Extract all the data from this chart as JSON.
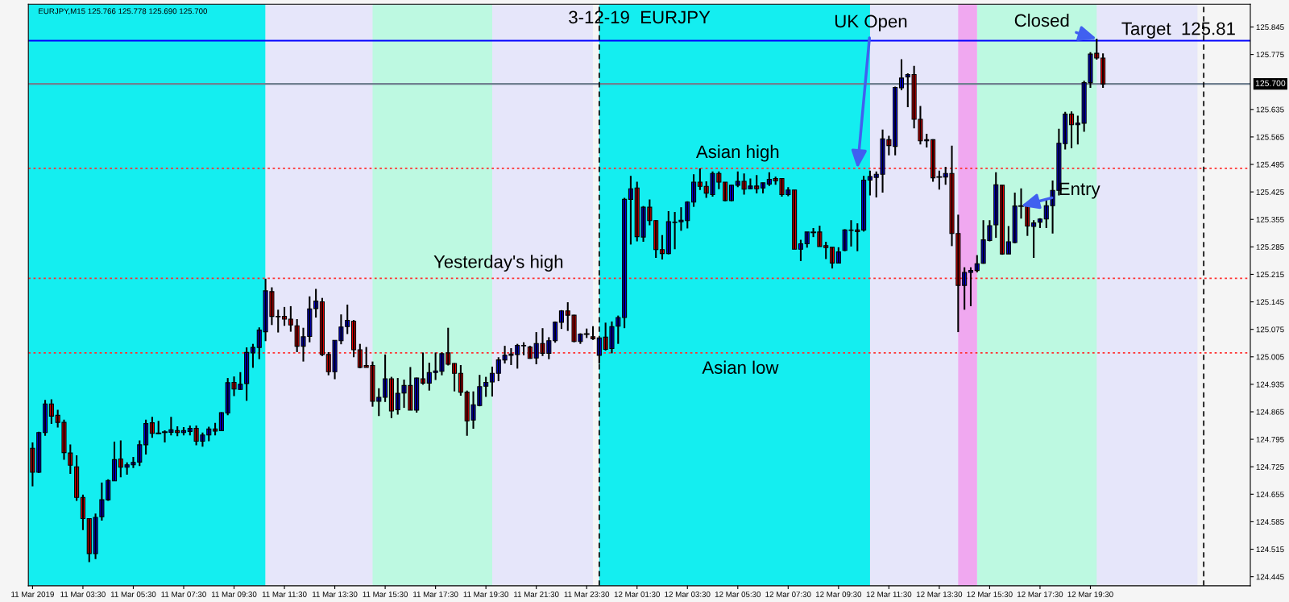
{
  "chart_data": {
    "type": "candlestick",
    "title": "3-12-19  EURJPY",
    "subtitle": "EURJPY,M15 125.766 125.778 125.690 125.700",
    "x": [
      "2019-03-11T01:30",
      "2019-03-11T01:45",
      "2019-03-11T02:00",
      "2019-03-11T02:15",
      "2019-03-11T02:30",
      "2019-03-11T02:45",
      "2019-03-11T03:00",
      "2019-03-11T03:15",
      "2019-03-11T03:30",
      "2019-03-11T03:45",
      "2019-03-11T04:00",
      "2019-03-11T04:15",
      "2019-03-11T04:30",
      "2019-03-11T04:45",
      "2019-03-11T05:00",
      "2019-03-11T05:15",
      "2019-03-11T05:30",
      "2019-03-11T05:45",
      "2019-03-11T06:00",
      "2019-03-11T06:15",
      "2019-03-11T06:30",
      "2019-03-11T06:45",
      "2019-03-11T07:00",
      "2019-03-11T07:15",
      "2019-03-11T07:30",
      "2019-03-11T07:45",
      "2019-03-11T08:00",
      "2019-03-11T08:15",
      "2019-03-11T08:30",
      "2019-03-11T08:45",
      "2019-03-11T09:00",
      "2019-03-11T09:15",
      "2019-03-11T09:30",
      "2019-03-11T09:45",
      "2019-03-11T10:00",
      "2019-03-11T10:15",
      "2019-03-11T10:30",
      "2019-03-11T10:45",
      "2019-03-11T11:00",
      "2019-03-11T11:15",
      "2019-03-11T11:30",
      "2019-03-11T11:45",
      "2019-03-11T12:00",
      "2019-03-11T12:15",
      "2019-03-11T12:30",
      "2019-03-11T12:45",
      "2019-03-11T13:00",
      "2019-03-11T13:15",
      "2019-03-11T13:30",
      "2019-03-11T13:45",
      "2019-03-11T14:00",
      "2019-03-11T14:15",
      "2019-03-11T14:30",
      "2019-03-11T14:45",
      "2019-03-11T15:00",
      "2019-03-11T15:15",
      "2019-03-11T15:30",
      "2019-03-11T15:45",
      "2019-03-11T16:00",
      "2019-03-11T16:15",
      "2019-03-11T16:30",
      "2019-03-11T16:45",
      "2019-03-11T17:00",
      "2019-03-11T17:15",
      "2019-03-11T17:30",
      "2019-03-11T17:45",
      "2019-03-11T18:00",
      "2019-03-11T18:15",
      "2019-03-11T18:30",
      "2019-03-11T18:45",
      "2019-03-11T19:00",
      "2019-03-11T19:15",
      "2019-03-11T19:30",
      "2019-03-11T19:45",
      "2019-03-11T20:00",
      "2019-03-11T20:15",
      "2019-03-11T20:30",
      "2019-03-11T20:45",
      "2019-03-11T21:00",
      "2019-03-11T21:15",
      "2019-03-11T21:30",
      "2019-03-11T21:45",
      "2019-03-11T22:00",
      "2019-03-11T22:15",
      "2019-03-11T22:30",
      "2019-03-11T22:45",
      "2019-03-11T23:00",
      "2019-03-11T23:15",
      "2019-03-11T23:30",
      "2019-03-11T23:45",
      "2019-03-12T00:00",
      "2019-03-12T00:15",
      "2019-03-12T00:30",
      "2019-03-12T00:45",
      "2019-03-12T01:00",
      "2019-03-12T01:15",
      "2019-03-12T01:30",
      "2019-03-12T01:45",
      "2019-03-12T02:00",
      "2019-03-12T02:15",
      "2019-03-12T02:30",
      "2019-03-12T02:45",
      "2019-03-12T03:00",
      "2019-03-12T03:15",
      "2019-03-12T03:30",
      "2019-03-12T03:45",
      "2019-03-12T04:00",
      "2019-03-12T04:15",
      "2019-03-12T04:30",
      "2019-03-12T04:45",
      "2019-03-12T05:00",
      "2019-03-12T05:15",
      "2019-03-12T05:30",
      "2019-03-12T05:45",
      "2019-03-12T06:00",
      "2019-03-12T06:15",
      "2019-03-12T06:30",
      "2019-03-12T06:45",
      "2019-03-12T07:00",
      "2019-03-12T07:15",
      "2019-03-12T07:30",
      "2019-03-12T07:45",
      "2019-03-12T08:00",
      "2019-03-12T08:15",
      "2019-03-12T08:30",
      "2019-03-12T08:45",
      "2019-03-12T09:00",
      "2019-03-12T09:15",
      "2019-03-12T09:30",
      "2019-03-12T09:45",
      "2019-03-12T10:00",
      "2019-03-12T10:15",
      "2019-03-12T10:30",
      "2019-03-12T10:45",
      "2019-03-12T11:00",
      "2019-03-12T11:15",
      "2019-03-12T11:30",
      "2019-03-12T11:45",
      "2019-03-12T12:00",
      "2019-03-12T12:15",
      "2019-03-12T12:30",
      "2019-03-12T12:45",
      "2019-03-12T13:00",
      "2019-03-12T13:15",
      "2019-03-12T13:30",
      "2019-03-12T13:45",
      "2019-03-12T14:00",
      "2019-03-12T14:15",
      "2019-03-12T14:30",
      "2019-03-12T14:45",
      "2019-03-12T15:00",
      "2019-03-12T15:15",
      "2019-03-12T15:30",
      "2019-03-12T15:45",
      "2019-03-12T16:00",
      "2019-03-12T16:15",
      "2019-03-12T16:30",
      "2019-03-12T16:45",
      "2019-03-12T17:00",
      "2019-03-12T17:15",
      "2019-03-12T17:30",
      "2019-03-12T17:45",
      "2019-03-12T18:00",
      "2019-03-12T18:15",
      "2019-03-12T18:30",
      "2019-03-12T18:45",
      "2019-03-12T19:00",
      "2019-03-12T19:15",
      "2019-03-12T19:30",
      "2019-03-12T19:45",
      "2019-03-12T20:00"
    ],
    "colors": [
      "#ff0000",
      "#0000ff",
      "#0000ff",
      "#ff0000",
      "#ff0000",
      "#ff0000",
      "#ff0000",
      "#ff0000",
      "#ff0000",
      "#ff0000",
      "#0000ff",
      "#0000ff",
      "#0000ff",
      "#0000ff",
      "#ff0000",
      "#0000ff",
      "#0000ff",
      "#0000ff",
      "#0000ff",
      "#ff0000",
      "#000000",
      "#000000",
      "#0000ff",
      "#ff0000",
      "#0000ff",
      "#0000ff",
      "#ff0000",
      "#0000ff",
      "#0000ff",
      "#ff0000",
      "#0000ff",
      "#0000ff",
      "#ff0000",
      "#0000ff",
      "#0000ff",
      "#0000ff",
      "#0000ff",
      "#0000ff",
      "#ff0000",
      "#ff0000",
      "#ff0000",
      "#ff0000",
      "#ff0000",
      "#0000ff",
      "#0000ff",
      "#0000ff",
      "#ff0000",
      "#ff0000",
      "#0000ff",
      "#0000ff",
      "#0000ff",
      "#ff0000",
      "#ff0000",
      "#ff0000",
      "#ff0000",
      "#0000ff",
      "#0000ff",
      "#ff0000",
      "#0000ff",
      "#0000ff",
      "#ff0000",
      "#0000ff",
      "#ff0000",
      "#0000ff",
      "#0000ff",
      "#0000ff",
      "#ff0000",
      "#ff0000",
      "#ff0000",
      "#ff0000",
      "#0000ff",
      "#0000ff",
      "#0000ff",
      "#0000ff",
      "#0000ff",
      "#0000ff",
      "#0000ff",
      "#0000ff",
      "#0000ff",
      "#ff0000",
      "#0000ff",
      "#ff0000",
      "#0000ff",
      "#0000ff",
      "#0000ff",
      "#ff0000",
      "#ff0000",
      "#0000ff",
      "#000000",
      "#ff0000",
      "#0000ff",
      "#ff0000",
      "#0000ff",
      "#0000ff",
      "#0000ff",
      "#0000ff",
      "#ff0000",
      "#0000ff",
      "#ff0000",
      "#ff0000",
      "#ff0000",
      "#0000ff",
      "#0000ff",
      "#0000ff",
      "#0000ff",
      "#0000ff",
      "#ff0000",
      "#ff0000",
      "#0000ff",
      "#ff0000",
      "#ff0000",
      "#0000ff",
      "#0000ff",
      "#ff0000",
      "#0000ff",
      "#ff0000",
      "#0000ff",
      "#0000ff",
      "#ff0000",
      "#ff0000",
      "#0000ff",
      "#ff0000",
      "#0000ff",
      "#0000ff",
      "#000000",
      "#ff0000",
      "#ff0000",
      "#ff0000",
      "#0000ff",
      "#0000ff",
      "#0000ff",
      "#ff0000",
      "#0000ff",
      "#0000ff",
      "#0000ff",
      "#0000ff",
      "#ff0000",
      "#0000ff",
      "#0000ff",
      "#0000ff",
      "#ff0000",
      "#ff0000",
      "#0000ff",
      "#ff0000",
      "#000000",
      "#0000ff",
      "#ff0000",
      "#ff0000",
      "#0000ff",
      "#0000ff",
      "#0000ff",
      "#0000ff",
      "#0000ff",
      "#0000ff",
      "#ff0000",
      "#0000ff",
      "#0000ff",
      "#000000",
      "#ff0000",
      "#0000ff",
      "#0000ff",
      "#0000ff",
      "#0000ff",
      "#0000ff",
      "#0000ff",
      "#ff0000",
      "#0000ff",
      "#0000ff",
      "#0000ff",
      "#ff0000",
      "#ff0000"
    ],
    "ohlc": [
      [
        124.772,
        124.787,
        124.675,
        124.711
      ],
      [
        124.711,
        124.814,
        124.709,
        124.812
      ],
      [
        124.812,
        124.895,
        124.804,
        124.885
      ],
      [
        124.885,
        124.897,
        124.834,
        124.854
      ],
      [
        124.856,
        124.87,
        124.825,
        124.838
      ],
      [
        124.838,
        124.845,
        124.743,
        124.761
      ],
      [
        124.76,
        124.782,
        124.707,
        124.729
      ],
      [
        124.725,
        124.754,
        124.638,
        124.647
      ],
      [
        124.647,
        124.654,
        124.564,
        124.593
      ],
      [
        124.593,
        124.593,
        124.482,
        124.504
      ],
      [
        124.504,
        124.606,
        124.49,
        124.596
      ],
      [
        124.598,
        124.685,
        124.588,
        124.641
      ],
      [
        124.641,
        124.693,
        124.638,
        124.69
      ],
      [
        124.689,
        124.789,
        124.689,
        124.743
      ],
      [
        124.745,
        124.792,
        124.698,
        124.724
      ],
      [
        124.724,
        124.736,
        124.705,
        124.73
      ],
      [
        124.73,
        124.75,
        124.722,
        124.736
      ],
      [
        124.737,
        124.792,
        124.727,
        124.781
      ],
      [
        124.781,
        124.845,
        124.756,
        124.835
      ],
      [
        124.837,
        124.852,
        124.799,
        124.81
      ],
      [
        124.81,
        124.842,
        124.808,
        124.81
      ],
      [
        124.813,
        124.818,
        124.787,
        124.813
      ],
      [
        124.813,
        124.852,
        124.805,
        124.819
      ],
      [
        124.817,
        124.828,
        124.803,
        124.812
      ],
      [
        124.812,
        124.826,
        124.805,
        124.817
      ],
      [
        124.815,
        124.83,
        124.805,
        124.823
      ],
      [
        124.823,
        124.83,
        124.78,
        124.79
      ],
      [
        124.79,
        124.812,
        124.776,
        124.806
      ],
      [
        124.806,
        124.827,
        124.79,
        124.821
      ],
      [
        124.821,
        124.837,
        124.805,
        124.816
      ],
      [
        124.817,
        124.864,
        124.817,
        124.863
      ],
      [
        124.862,
        124.951,
        124.856,
        124.939
      ],
      [
        124.94,
        124.955,
        124.905,
        124.923
      ],
      [
        124.922,
        124.966,
        124.921,
        124.935
      ],
      [
        124.937,
        125.029,
        124.893,
        125.016
      ],
      [
        125.015,
        125.038,
        124.977,
        125.029
      ],
      [
        125.029,
        125.08,
        124.999,
        125.073
      ],
      [
        125.069,
        125.204,
        125.045,
        125.173
      ],
      [
        125.171,
        125.182,
        125.086,
        125.108
      ],
      [
        125.108,
        125.125,
        125.067,
        125.107
      ],
      [
        125.108,
        125.132,
        125.084,
        125.101
      ],
      [
        125.101,
        125.134,
        125.069,
        125.086
      ],
      [
        125.084,
        125.101,
        125.017,
        125.032
      ],
      [
        125.032,
        125.079,
        124.993,
        125.056
      ],
      [
        125.057,
        125.159,
        125.042,
        125.127
      ],
      [
        125.128,
        125.178,
        125.105,
        125.147
      ],
      [
        125.145,
        125.155,
        125.007,
        125.011
      ],
      [
        125.011,
        125.017,
        124.958,
        124.967
      ],
      [
        124.967,
        125.047,
        124.948,
        125.047
      ],
      [
        125.046,
        125.113,
        125.037,
        125.081
      ],
      [
        125.082,
        125.138,
        125.063,
        125.098
      ],
      [
        125.096,
        125.099,
        125.004,
        125.023
      ],
      [
        125.023,
        125.038,
        124.976,
        124.978
      ],
      [
        124.983,
        125.03,
        124.978,
        124.978
      ],
      [
        124.983,
        124.993,
        124.878,
        124.892
      ],
      [
        124.892,
        124.925,
        124.854,
        124.902
      ],
      [
        124.902,
        125.011,
        124.89,
        124.949
      ],
      [
        124.949,
        124.954,
        124.849,
        124.867
      ],
      [
        124.87,
        124.951,
        124.858,
        124.912
      ],
      [
        124.913,
        124.947,
        124.875,
        124.932
      ],
      [
        124.932,
        124.979,
        124.869,
        124.869
      ],
      [
        124.869,
        124.952,
        124.863,
        124.951
      ],
      [
        124.949,
        125.016,
        124.934,
        124.938
      ],
      [
        124.938,
        124.99,
        124.919,
        124.965
      ],
      [
        124.965,
        125.016,
        124.946,
        124.969
      ],
      [
        124.968,
        125.016,
        124.958,
        125.013
      ],
      [
        125.015,
        125.079,
        124.983,
        124.986
      ],
      [
        124.988,
        124.989,
        124.917,
        124.963
      ],
      [
        124.963,
        124.984,
        124.906,
        124.915
      ],
      [
        124.915,
        124.919,
        124.804,
        124.842
      ],
      [
        124.844,
        124.917,
        124.822,
        124.883
      ],
      [
        124.881,
        124.959,
        124.879,
        124.929
      ],
      [
        124.93,
        124.954,
        124.903,
        124.94
      ],
      [
        124.941,
        124.98,
        124.904,
        124.963
      ],
      [
        124.963,
        125.004,
        124.943,
        124.997
      ],
      [
        124.997,
        125.033,
        124.988,
        125.009
      ],
      [
        125.009,
        125.027,
        124.984,
        125.012
      ],
      [
        125.011,
        125.038,
        124.975,
        125.034
      ],
      [
        125.033,
        125.042,
        125.009,
        125.034
      ],
      [
        125.03,
        125.033,
        125.0,
        125.001
      ],
      [
        125.002,
        125.068,
        124.986,
        125.039
      ],
      [
        125.039,
        125.078,
        125.007,
        125.014
      ],
      [
        125.014,
        125.055,
        124.999,
        125.046
      ],
      [
        125.046,
        125.095,
        125.041,
        125.093
      ],
      [
        125.093,
        125.124,
        125.076,
        125.122
      ],
      [
        125.122,
        125.144,
        125.071,
        125.111
      ],
      [
        125.111,
        125.112,
        125.042,
        125.044
      ],
      [
        125.044,
        125.065,
        125.038,
        125.063
      ],
      [
        125.063,
        125.077,
        125.053,
        125.063
      ],
      [
        125.056,
        125.083,
        125.048,
        125.051
      ],
      [
        125.009,
        125.053,
        124.988,
        125.053
      ],
      [
        125.055,
        125.092,
        125.021,
        125.024
      ],
      [
        125.026,
        125.095,
        125.014,
        125.082
      ],
      [
        125.083,
        125.11,
        125.038,
        125.105
      ],
      [
        125.105,
        125.41,
        125.078,
        125.406
      ],
      [
        125.406,
        125.466,
        125.291,
        125.433
      ],
      [
        125.435,
        125.451,
        125.299,
        125.311
      ],
      [
        125.31,
        125.389,
        125.298,
        125.386
      ],
      [
        125.386,
        125.406,
        125.34,
        125.352
      ],
      [
        125.352,
        125.353,
        125.257,
        125.278
      ],
      [
        125.278,
        125.315,
        125.253,
        125.268
      ],
      [
        125.268,
        125.376,
        125.266,
        125.349
      ],
      [
        125.347,
        125.374,
        125.279,
        125.348
      ],
      [
        125.349,
        125.386,
        125.326,
        125.353
      ],
      [
        125.352,
        125.401,
        125.332,
        125.399
      ],
      [
        125.399,
        125.47,
        125.387,
        125.45
      ],
      [
        125.45,
        125.485,
        125.43,
        125.439
      ],
      [
        125.439,
        125.452,
        125.41,
        125.422
      ],
      [
        125.418,
        125.477,
        125.413,
        125.472
      ],
      [
        125.472,
        125.477,
        125.432,
        125.45
      ],
      [
        125.45,
        125.45,
        125.401,
        125.403
      ],
      [
        125.403,
        125.443,
        125.401,
        125.442
      ],
      [
        125.442,
        125.477,
        125.437,
        125.452
      ],
      [
        125.452,
        125.472,
        125.418,
        125.432
      ],
      [
        125.433,
        125.459,
        125.432,
        125.44
      ],
      [
        125.44,
        125.468,
        125.421,
        125.433
      ],
      [
        125.435,
        125.449,
        125.421,
        125.448
      ],
      [
        125.445,
        125.475,
        125.44,
        125.457
      ],
      [
        125.459,
        125.464,
        125.443,
        125.453
      ],
      [
        125.459,
        125.459,
        125.413,
        125.418
      ],
      [
        125.418,
        125.437,
        125.414,
        125.43
      ],
      [
        125.43,
        125.43,
        125.279,
        125.279
      ],
      [
        125.279,
        125.303,
        125.249,
        125.293
      ],
      [
        125.293,
        125.323,
        125.283,
        125.323
      ],
      [
        125.322,
        125.333,
        125.31,
        125.322
      ],
      [
        125.323,
        125.339,
        125.286,
        125.286
      ],
      [
        125.288,
        125.298,
        125.254,
        125.283
      ],
      [
        125.284,
        125.284,
        125.23,
        125.244
      ],
      [
        125.244,
        125.284,
        125.243,
        125.272
      ],
      [
        125.276,
        125.33,
        125.274,
        125.328
      ],
      [
        125.327,
        125.353,
        125.286,
        125.328
      ],
      [
        125.328,
        125.345,
        125.274,
        125.324
      ],
      [
        125.328,
        125.466,
        125.324,
        125.455
      ],
      [
        125.455,
        125.479,
        125.416,
        125.464
      ],
      [
        125.462,
        125.477,
        125.411,
        125.47
      ],
      [
        125.47,
        125.584,
        125.423,
        125.56
      ],
      [
        125.558,
        125.568,
        125.518,
        125.543
      ],
      [
        125.541,
        125.693,
        125.518,
        125.691
      ],
      [
        125.69,
        125.763,
        125.684,
        125.715
      ],
      [
        125.718,
        125.727,
        125.641,
        125.724
      ],
      [
        125.724,
        125.746,
        125.587,
        125.61
      ],
      [
        125.61,
        125.644,
        125.546,
        125.555
      ],
      [
        125.555,
        125.573,
        125.538,
        125.558
      ],
      [
        125.558,
        125.559,
        125.451,
        125.461
      ],
      [
        125.463,
        125.479,
        125.431,
        125.463
      ],
      [
        125.463,
        125.489,
        125.443,
        125.472
      ],
      [
        125.472,
        125.543,
        125.287,
        125.319
      ],
      [
        125.319,
        125.367,
        125.068,
        125.187
      ],
      [
        125.187,
        125.233,
        125.125,
        125.22
      ],
      [
        125.22,
        125.233,
        125.134,
        125.225
      ],
      [
        125.225,
        125.264,
        125.22,
        125.242
      ],
      [
        125.243,
        125.353,
        125.242,
        125.303
      ],
      [
        125.301,
        125.353,
        125.299,
        125.339
      ],
      [
        125.341,
        125.475,
        125.308,
        125.443
      ],
      [
        125.442,
        125.442,
        125.265,
        125.267
      ],
      [
        125.267,
        125.338,
        125.267,
        125.298
      ],
      [
        125.296,
        125.423,
        125.294,
        125.389
      ],
      [
        125.389,
        125.434,
        125.357,
        125.389
      ],
      [
        125.389,
        125.389,
        125.313,
        125.338
      ],
      [
        125.337,
        125.353,
        125.257,
        125.346
      ],
      [
        125.348,
        125.358,
        125.333,
        125.356
      ],
      [
        125.356,
        125.409,
        125.333,
        125.39
      ],
      [
        125.39,
        125.454,
        125.319,
        125.429
      ],
      [
        125.429,
        125.586,
        125.416,
        125.549
      ],
      [
        125.548,
        125.629,
        125.533,
        125.623
      ],
      [
        125.623,
        125.63,
        125.536,
        125.596
      ],
      [
        125.596,
        125.619,
        125.546,
        125.6
      ],
      [
        125.6,
        125.708,
        125.578,
        125.703
      ],
      [
        125.703,
        125.781,
        125.69,
        125.776
      ],
      [
        125.778,
        125.815,
        125.762,
        125.766
      ],
      [
        125.766,
        125.778,
        125.69,
        125.7
      ]
    ],
    "xlim": [
      "2019-03-11T01:20",
      "2019-03-13T01:51"
    ],
    "xticks": [
      {
        "value": "2019-03-11T01:30",
        "label": "11 Mar 2019"
      },
      {
        "value": "2019-03-11T03:30",
        "label": "11 Mar 03:30"
      },
      {
        "value": "2019-03-11T05:30",
        "label": "11 Mar 05:30"
      },
      {
        "value": "2019-03-11T07:30",
        "label": "11 Mar 07:30"
      },
      {
        "value": "2019-03-11T09:30",
        "label": "11 Mar 09:30"
      },
      {
        "value": "2019-03-11T11:30",
        "label": "11 Mar 11:30"
      },
      {
        "value": "2019-03-11T13:30",
        "label": "11 Mar 13:30"
      },
      {
        "value": "2019-03-11T15:30",
        "label": "11 Mar 15:30"
      },
      {
        "value": "2019-03-11T17:30",
        "label": "11 Mar 17:30"
      },
      {
        "value": "2019-03-11T19:30",
        "label": "11 Mar 19:30"
      },
      {
        "value": "2019-03-11T21:30",
        "label": "11 Mar 21:30"
      },
      {
        "value": "2019-03-11T23:30",
        "label": "11 Mar 23:30"
      },
      {
        "value": "2019-03-12T01:30",
        "label": "12 Mar 01:30"
      },
      {
        "value": "2019-03-12T03:30",
        "label": "12 Mar 03:30"
      },
      {
        "value": "2019-03-12T05:30",
        "label": "12 Mar 05:30"
      },
      {
        "value": "2019-03-12T07:30",
        "label": "12 Mar 07:30"
      },
      {
        "value": "2019-03-12T09:30",
        "label": "12 Mar 09:30"
      },
      {
        "value": "2019-03-12T11:30",
        "label": "12 Mar 11:30"
      },
      {
        "value": "2019-03-12T13:30",
        "label": "12 Mar 13:30"
      },
      {
        "value": "2019-03-12T15:30",
        "label": "12 Mar 15:30"
      },
      {
        "value": "2019-03-12T17:30",
        "label": "12 Mar 17:30"
      },
      {
        "value": "2019-03-12T19:30",
        "label": "12 Mar 19:30"
      }
    ],
    "ylim": [
      124.422,
      125.903
    ],
    "yticks": [
      124.445,
      124.515,
      124.585,
      124.655,
      124.725,
      124.795,
      124.865,
      124.935,
      125.005,
      125.075,
      125.145,
      125.215,
      125.285,
      125.355,
      125.425,
      125.495,
      125.565,
      125.635,
      125.775,
      125.845
    ],
    "bands": [
      {
        "axis": "x",
        "from": "2019-03-11T01:20",
        "to": "2019-03-11T10:45",
        "color": "#14eef0"
      },
      {
        "axis": "x",
        "from": "2019-03-11T10:45",
        "to": "2019-03-11T23:45",
        "color": "#e6e6fa"
      },
      {
        "axis": "x",
        "from": "2019-03-11T15:00",
        "to": "2019-03-11T19:45",
        "color": "#bdf9e1"
      },
      {
        "axis": "x",
        "from": "2019-03-12T00:00",
        "to": "2019-03-12T23:45",
        "color": "#e6e6fa"
      },
      {
        "axis": "x",
        "from": "2019-03-12T00:00",
        "to": "2019-03-12T10:45",
        "color": "#14eef0"
      },
      {
        "axis": "x",
        "from": "2019-03-12T15:00",
        "to": "2019-03-12T19:45",
        "color": "#bdf9e1"
      },
      {
        "axis": "x",
        "from": "2019-03-12T14:15",
        "to": "2019-03-12T15:00",
        "color": "#f0a8f0"
      }
    ],
    "ref_lines": [
      {
        "axis": "y",
        "value": 125.81,
        "color": "#0000ff",
        "line_style": "solid"
      },
      {
        "axis": "y",
        "value": 125.7,
        "label": "125.700",
        "color": "#708090",
        "line_style": "solid"
      },
      {
        "axis": "y",
        "value": 125.485,
        "color": "#ff3030",
        "line_style": "dotted"
      },
      {
        "axis": "y",
        "value": 125.205,
        "color": "#ff3030",
        "line_style": "dotted"
      },
      {
        "axis": "y",
        "value": 125.015,
        "color": "#ff3030",
        "line_style": "dotted"
      },
      {
        "axis": "x",
        "value": "2019-03-12T00:00",
        "color": "#000000",
        "line_style": "dashed"
      },
      {
        "axis": "x",
        "value": "2019-03-13T00:00",
        "color": "#000000",
        "line_style": "dashed"
      }
    ],
    "annotations": [
      {
        "text": "UK Open",
        "x": "2019-03-12T10:15",
        "y": 125.485
      },
      {
        "text": "Closed",
        "x": "2019-03-12T19:45",
        "y": 125.815
      },
      {
        "text": "Entry",
        "x": "2019-03-12T16:45",
        "y": 125.389
      },
      {
        "text": "Asian high",
        "x": "2019-03-12T05:30",
        "y": 125.485
      },
      {
        "text": "Asian low",
        "x": "2019-03-12T05:36",
        "y": 125.015
      },
      {
        "text": "Yesterday's high",
        "x": "2019-03-11T20:00",
        "y": 125.205
      },
      {
        "text": "Target  125.81",
        "x": "2019-03-12T23:00",
        "y": 125.81
      }
    ]
  }
}
